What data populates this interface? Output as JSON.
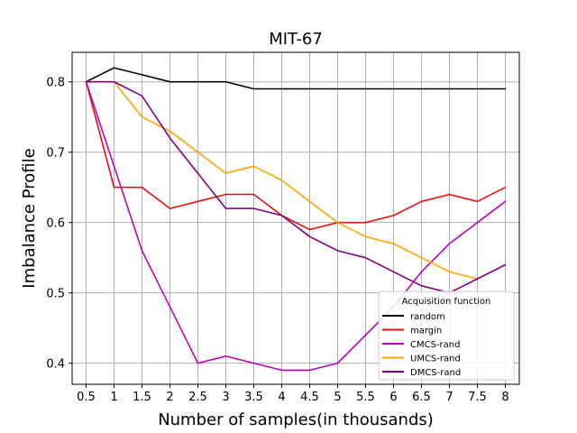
{
  "chart_data": {
    "type": "line",
    "title": "MIT-67",
    "xlabel": "Number of samples(in thousands)",
    "ylabel": "Imbalance Profile",
    "x": [
      0.5,
      1,
      1.5,
      2,
      2.5,
      3,
      3.5,
      4,
      4.5,
      5,
      5.5,
      6,
      6.5,
      7,
      7.5,
      8
    ],
    "x_tick_labels": [
      "0.5",
      "1",
      "1.5",
      "2",
      "2.5",
      "3",
      "3.5",
      "4",
      "4.5",
      "5",
      "5.5",
      "6",
      "6.5",
      "7",
      "7.5",
      "8"
    ],
    "y_ticks": [
      0.4,
      0.5,
      0.6,
      0.7,
      0.8
    ],
    "y_tick_labels": [
      "0.4",
      "0.5",
      "0.6",
      "0.7",
      "0.8"
    ],
    "xlim": [
      0.25,
      8.25
    ],
    "ylim": [
      0.37,
      0.842
    ],
    "grid": true,
    "legend": {
      "title": "Acquisition function",
      "position": "lower-right"
    },
    "series": [
      {
        "name": "random",
        "color": "#000000",
        "values": [
          0.8,
          0.82,
          0.81,
          0.8,
          0.8,
          0.8,
          0.79,
          0.79,
          0.79,
          0.79,
          0.79,
          0.79,
          0.79,
          0.79,
          0.79,
          0.79
        ]
      },
      {
        "name": "margin",
        "color": "#e8100e",
        "values": [
          0.8,
          0.65,
          0.65,
          0.62,
          0.63,
          0.64,
          0.64,
          0.61,
          0.59,
          0.6,
          0.6,
          0.61,
          0.63,
          0.64,
          0.63,
          0.65
        ]
      },
      {
        "name": "CMCS-rand",
        "color": "#bf00bf",
        "values": [
          0.8,
          0.68,
          0.56,
          0.48,
          0.4,
          0.41,
          0.4,
          0.39,
          0.39,
          0.4,
          0.44,
          0.48,
          0.53,
          0.57,
          0.6,
          0.63
        ]
      },
      {
        "name": "UMCS-rand",
        "color": "#ffa500",
        "values": [
          0.8,
          0.8,
          0.75,
          0.73,
          0.7,
          0.67,
          0.68,
          0.66,
          0.63,
          0.6,
          0.58,
          0.57,
          0.55,
          0.53,
          0.52,
          null
        ]
      },
      {
        "name": "DMCS-rand",
        "color": "#800080",
        "values": [
          0.8,
          0.8,
          0.78,
          0.72,
          0.67,
          0.62,
          0.62,
          0.61,
          0.58,
          0.56,
          0.55,
          0.53,
          0.51,
          0.5,
          0.52,
          0.54
        ]
      }
    ]
  }
}
